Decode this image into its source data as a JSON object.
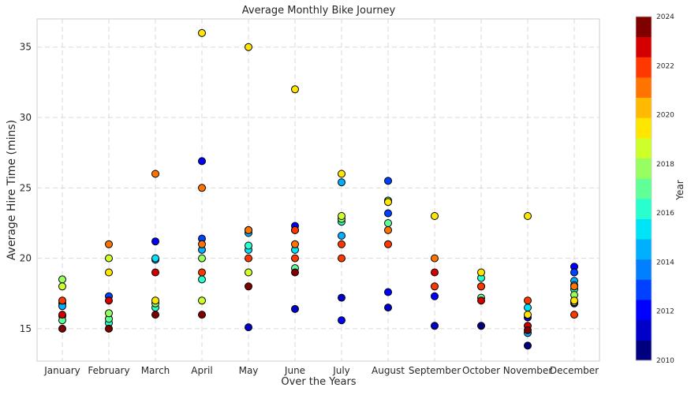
{
  "chart_data": {
    "type": "scatter",
    "title": "Average Monthly Bike Journey",
    "xlabel": "Over the Years",
    "ylabel": "Average Hire Time (mins)",
    "categories": [
      "January",
      "February",
      "March",
      "April",
      "May",
      "June",
      "July",
      "August",
      "September",
      "October",
      "November",
      "December"
    ],
    "ylim": [
      12.7,
      37.0
    ],
    "yticks": [
      15,
      20,
      25,
      30,
      35
    ],
    "grid": true,
    "colorbar": {
      "label": "Year",
      "range": [
        2010,
        2024
      ],
      "ticks": [
        2010,
        2012,
        2014,
        2016,
        2018,
        2020,
        2022,
        2024
      ],
      "colors": [
        "#00007f",
        "#0000c8",
        "#0000ff",
        "#0040ff",
        "#0080ff",
        "#00b0ff",
        "#00e4f7",
        "#29ffce",
        "#60ff97",
        "#97ff60",
        "#ceff29",
        "#ffe600",
        "#ffb900",
        "#ff7300",
        "#ff3800",
        "#d40000",
        "#800000"
      ]
    },
    "series": [
      {
        "year": 2010,
        "points": [
          [
            "October",
            15.2
          ],
          [
            "November",
            13.8
          ]
        ]
      },
      {
        "year": 2011,
        "points": [
          [
            "May",
            15.1
          ],
          [
            "June",
            16.4
          ],
          [
            "July",
            17.2
          ],
          [
            "August",
            16.5
          ],
          [
            "September",
            15.2
          ],
          [
            "November",
            15.8
          ],
          [
            "December",
            16.8
          ]
        ]
      },
      {
        "year": 2012,
        "points": [
          [
            "March",
            21.2
          ],
          [
            "April",
            26.9
          ],
          [
            "June",
            22.3
          ],
          [
            "July",
            15.6
          ],
          [
            "August",
            17.6
          ],
          [
            "September",
            17.3
          ],
          [
            "December",
            19.4
          ]
        ]
      },
      {
        "year": 2013,
        "points": [
          [
            "January",
            16.8
          ],
          [
            "February",
            17.3
          ],
          [
            "April",
            21.4
          ],
          [
            "August",
            25.5
          ],
          [
            "August",
            23.2
          ],
          [
            "December",
            19.0
          ]
        ]
      },
      {
        "year": 2014,
        "points": [
          [
            "January",
            16.6
          ],
          [
            "March",
            19.9
          ],
          [
            "April",
            20.6
          ],
          [
            "May",
            21.8
          ],
          [
            "June",
            22.0
          ],
          [
            "July",
            25.4
          ],
          [
            "July",
            21.6
          ],
          [
            "November",
            14.7
          ],
          [
            "December",
            18.4
          ]
        ]
      },
      {
        "year": 2015,
        "points": [
          [
            "January",
            15.9
          ],
          [
            "March",
            20.0
          ],
          [
            "May",
            20.6
          ],
          [
            "June",
            20.6
          ],
          [
            "November",
            16.5
          ],
          [
            "December",
            18.1
          ]
        ]
      },
      {
        "year": 2016,
        "points": [
          [
            "February",
            15.4
          ],
          [
            "March",
            16.5
          ],
          [
            "April",
            18.5
          ],
          [
            "May",
            20.9
          ],
          [
            "July",
            22.6
          ],
          [
            "October",
            18.6
          ],
          [
            "December",
            17.8
          ]
        ]
      },
      {
        "year": 2017,
        "points": [
          [
            "January",
            15.6
          ],
          [
            "February",
            15.7
          ],
          [
            "June",
            19.3
          ],
          [
            "August",
            22.5
          ],
          [
            "August",
            24.1
          ],
          [
            "October",
            17.2
          ]
        ]
      },
      {
        "year": 2018,
        "points": [
          [
            "January",
            18.5
          ],
          [
            "February",
            16.1
          ],
          [
            "March",
            16.8
          ],
          [
            "April",
            20.0
          ],
          [
            "July",
            22.8
          ],
          [
            "December",
            17.4
          ]
        ]
      },
      {
        "year": 2019,
        "points": [
          [
            "January",
            18.0
          ],
          [
            "February",
            20.0
          ],
          [
            "April",
            17.0
          ],
          [
            "May",
            19.0
          ],
          [
            "July",
            23.0
          ],
          [
            "December",
            16.9
          ]
        ]
      },
      {
        "year": 2020,
        "points": [
          [
            "February",
            19.0
          ],
          [
            "March",
            17.0
          ],
          [
            "April",
            36.0
          ],
          [
            "May",
            35.0
          ],
          [
            "May",
            22.0
          ],
          [
            "June",
            32.0
          ],
          [
            "July",
            26.0
          ],
          [
            "August",
            24.0
          ],
          [
            "September",
            23.0
          ],
          [
            "October",
            19.0
          ],
          [
            "November",
            23.0
          ],
          [
            "November",
            16.0
          ],
          [
            "December",
            17.0
          ]
        ]
      },
      {
        "year": 2021,
        "points": [
          [
            "February",
            21.0
          ],
          [
            "March",
            26.0
          ],
          [
            "April",
            25.0
          ],
          [
            "April",
            21.0
          ],
          [
            "May",
            22.0
          ],
          [
            "June",
            21.0
          ],
          [
            "August",
            22.0
          ],
          [
            "September",
            20.0
          ],
          [
            "October",
            18.0
          ],
          [
            "December",
            18.0
          ]
        ]
      },
      {
        "year": 2022,
        "points": [
          [
            "January",
            17.0
          ],
          [
            "April",
            19.0
          ],
          [
            "May",
            20.0
          ],
          [
            "June",
            20.0
          ],
          [
            "June",
            22.0
          ],
          [
            "July",
            21.0
          ],
          [
            "July",
            20.0
          ],
          [
            "August",
            21.0
          ],
          [
            "September",
            18.0
          ],
          [
            "October",
            18.0
          ],
          [
            "November",
            17.0
          ],
          [
            "December",
            16.0
          ]
        ]
      },
      {
        "year": 2023,
        "points": [
          [
            "January",
            16.0
          ],
          [
            "February",
            17.0
          ],
          [
            "March",
            19.0
          ],
          [
            "September",
            19.0
          ],
          [
            "October",
            17.0
          ],
          [
            "November",
            15.2
          ]
        ]
      },
      {
        "year": 2024,
        "points": [
          [
            "January",
            15.0
          ],
          [
            "February",
            15.0
          ],
          [
            "March",
            16.0
          ],
          [
            "April",
            16.0
          ],
          [
            "May",
            18.0
          ],
          [
            "June",
            19.0
          ],
          [
            "November",
            14.9
          ]
        ]
      }
    ]
  }
}
